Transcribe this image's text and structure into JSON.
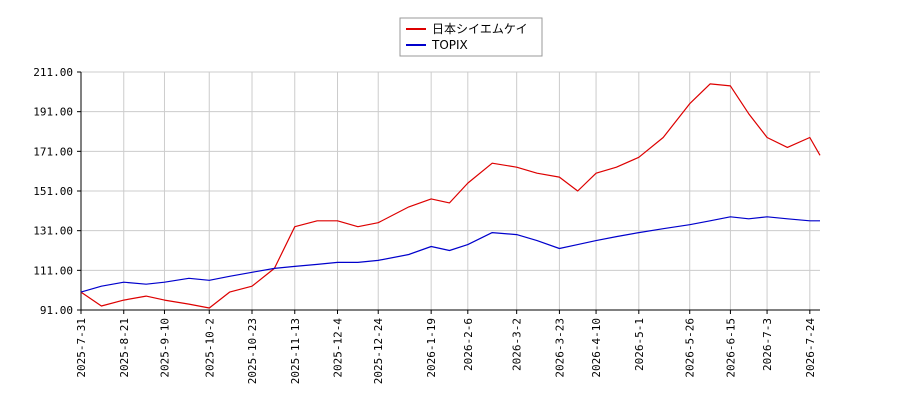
{
  "chart_data": {
    "type": "line",
    "ylim": [
      91,
      211
    ],
    "yticks": [
      "211.00",
      "191.00",
      "171.00",
      "151.00",
      "131.00",
      "111.00",
      "91.00"
    ],
    "ytick_values": [
      211,
      191,
      171,
      151,
      131,
      111,
      91
    ],
    "xticks": [
      "2025-7-31",
      "2025-8-21",
      "2025-9-10",
      "2025-10-2",
      "2025-10-23",
      "2025-11-13",
      "2025-12-4",
      "2025-12-24",
      "2026-1-19",
      "2026-2-6",
      "2026-3-2",
      "2026-3-23",
      "2026-4-10",
      "2026-5-1",
      "2026-5-26",
      "2026-6-15",
      "2026-7-3",
      "2026-7-24"
    ],
    "x": [
      "2025-7-31",
      "2025-8-10",
      "2025-8-21",
      "2025-9-1",
      "2025-9-10",
      "2025-9-22",
      "2025-10-2",
      "2025-10-12",
      "2025-10-23",
      "2025-11-3",
      "2025-11-13",
      "2025-11-24",
      "2025-12-4",
      "2025-12-14",
      "2025-12-24",
      "2026-1-8",
      "2026-1-19",
      "2026-1-28",
      "2026-2-6",
      "2026-2-18",
      "2026-3-2",
      "2026-3-12",
      "2026-3-23",
      "2026-4-1",
      "2026-4-10",
      "2026-4-20",
      "2026-5-1",
      "2026-5-13",
      "2026-5-26",
      "2026-6-5",
      "2026-6-15",
      "2026-6-24",
      "2026-7-3",
      "2026-7-13",
      "2026-7-24",
      "2026-7-29"
    ],
    "grid": true,
    "legend_position": "top-center",
    "series": [
      {
        "name": "日本シイエムケイ",
        "color": "#dd0000",
        "values": [
          100,
          93,
          96,
          98,
          96,
          94,
          92,
          100,
          103,
          112,
          133,
          136,
          136,
          133,
          135,
          143,
          147,
          145,
          155,
          165,
          163,
          160,
          158,
          151,
          160,
          163,
          168,
          178,
          195,
          205,
          204,
          190,
          178,
          173,
          178,
          169
        ]
      },
      {
        "name": "TOPIX",
        "color": "#0000cc",
        "values": [
          100,
          103,
          105,
          104,
          105,
          107,
          106,
          108,
          110,
          112,
          113,
          114,
          115,
          115,
          116,
          119,
          123,
          121,
          124,
          130,
          129,
          126,
          122,
          124,
          126,
          128,
          130,
          132,
          134,
          136,
          138,
          137,
          138,
          137,
          136,
          136
        ]
      }
    ]
  },
  "legend": {
    "items": [
      {
        "label": "日本シイエムケイ",
        "color": "#dd0000"
      },
      {
        "label": "TOPIX",
        "color": "#0000cc"
      }
    ]
  }
}
